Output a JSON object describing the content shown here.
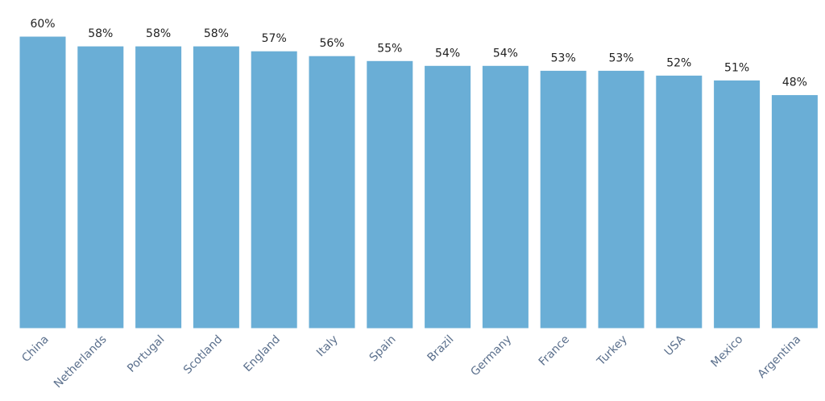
{
  "chart_data": {
    "type": "bar",
    "title": "",
    "xlabel": "",
    "ylabel": "",
    "ylim": [
      0,
      60
    ],
    "grid": false,
    "bar_color": "#6aaed6",
    "value_suffix": "%",
    "categories": [
      "China",
      "Netherlands",
      "Portugal",
      "Scotland",
      "England",
      "Italy",
      "Spain",
      "Brazil",
      "Germany",
      "France",
      "Turkey",
      "USA",
      "Mexico",
      "Argentina"
    ],
    "values": [
      60,
      58,
      58,
      58,
      57,
      56,
      55,
      54,
      54,
      53,
      53,
      52,
      51,
      48
    ],
    "value_labels": [
      "60%",
      "58%",
      "58%",
      "58%",
      "57%",
      "56%",
      "55%",
      "54%",
      "54%",
      "53%",
      "53%",
      "52%",
      "51%",
      "48%"
    ]
  }
}
